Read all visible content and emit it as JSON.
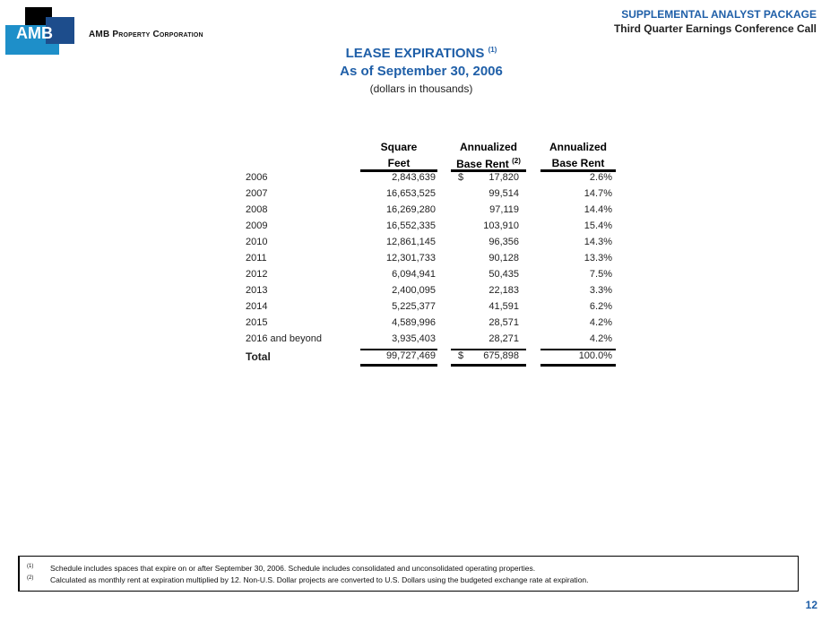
{
  "header": {
    "company": "AMB Property Corporation",
    "logo_text": "AMB",
    "package": "SUPPLEMENTAL ANALYST PACKAGE",
    "event": "Third Quarter Earnings Conference Call"
  },
  "title": {
    "main": "LEASE EXPIRATIONS",
    "main_note": "(1)",
    "date": "As of September 30, 2006",
    "units": "(dollars in thousands)"
  },
  "table": {
    "headers": [
      {
        "l1": "Square",
        "l2": "Feet",
        "note": ""
      },
      {
        "l1": "Annualized",
        "l2": "Base Rent",
        "note": "(2)"
      },
      {
        "l1": "Annualized",
        "l2": "Base Rent",
        "note": ""
      }
    ],
    "currency": "$",
    "rows": [
      {
        "label": "2006",
        "sqft": "2,843,639",
        "rent": "17,820",
        "pct": "2.6%"
      },
      {
        "label": "2007",
        "sqft": "16,653,525",
        "rent": "99,514",
        "pct": "14.7%"
      },
      {
        "label": "2008",
        "sqft": "16,269,280",
        "rent": "97,119",
        "pct": "14.4%"
      },
      {
        "label": "2009",
        "sqft": "16,552,335",
        "rent": "103,910",
        "pct": "15.4%"
      },
      {
        "label": "2010",
        "sqft": "12,861,145",
        "rent": "96,356",
        "pct": "14.3%"
      },
      {
        "label": "2011",
        "sqft": "12,301,733",
        "rent": "90,128",
        "pct": "13.3%"
      },
      {
        "label": "2012",
        "sqft": "6,094,941",
        "rent": "50,435",
        "pct": "7.5%"
      },
      {
        "label": "2013",
        "sqft": "2,400,095",
        "rent": "22,183",
        "pct": "3.3%"
      },
      {
        "label": "2014",
        "sqft": "5,225,377",
        "rent": "41,591",
        "pct": "6.2%"
      },
      {
        "label": "2015",
        "sqft": "4,589,996",
        "rent": "28,571",
        "pct": "4.2%"
      },
      {
        "label": "2016 and beyond",
        "sqft": "3,935,403",
        "rent": "28,271",
        "pct": "4.2%"
      }
    ],
    "total": {
      "label": "Total",
      "sqft": "99,727,469",
      "rent": "675,898",
      "pct": "100.0%"
    }
  },
  "footnotes": [
    {
      "mark": "(1)",
      "text": "Schedule includes spaces that expire on or after September 30, 2006. Schedule includes consolidated and unconsolidated operating properties."
    },
    {
      "mark": "(2)",
      "text": "Calculated as monthly rent at expiration multiplied by 12. Non-U.S. Dollar projects are converted to U.S. Dollars using the budgeted exchange rate at expiration."
    }
  ],
  "page_number": "12"
}
